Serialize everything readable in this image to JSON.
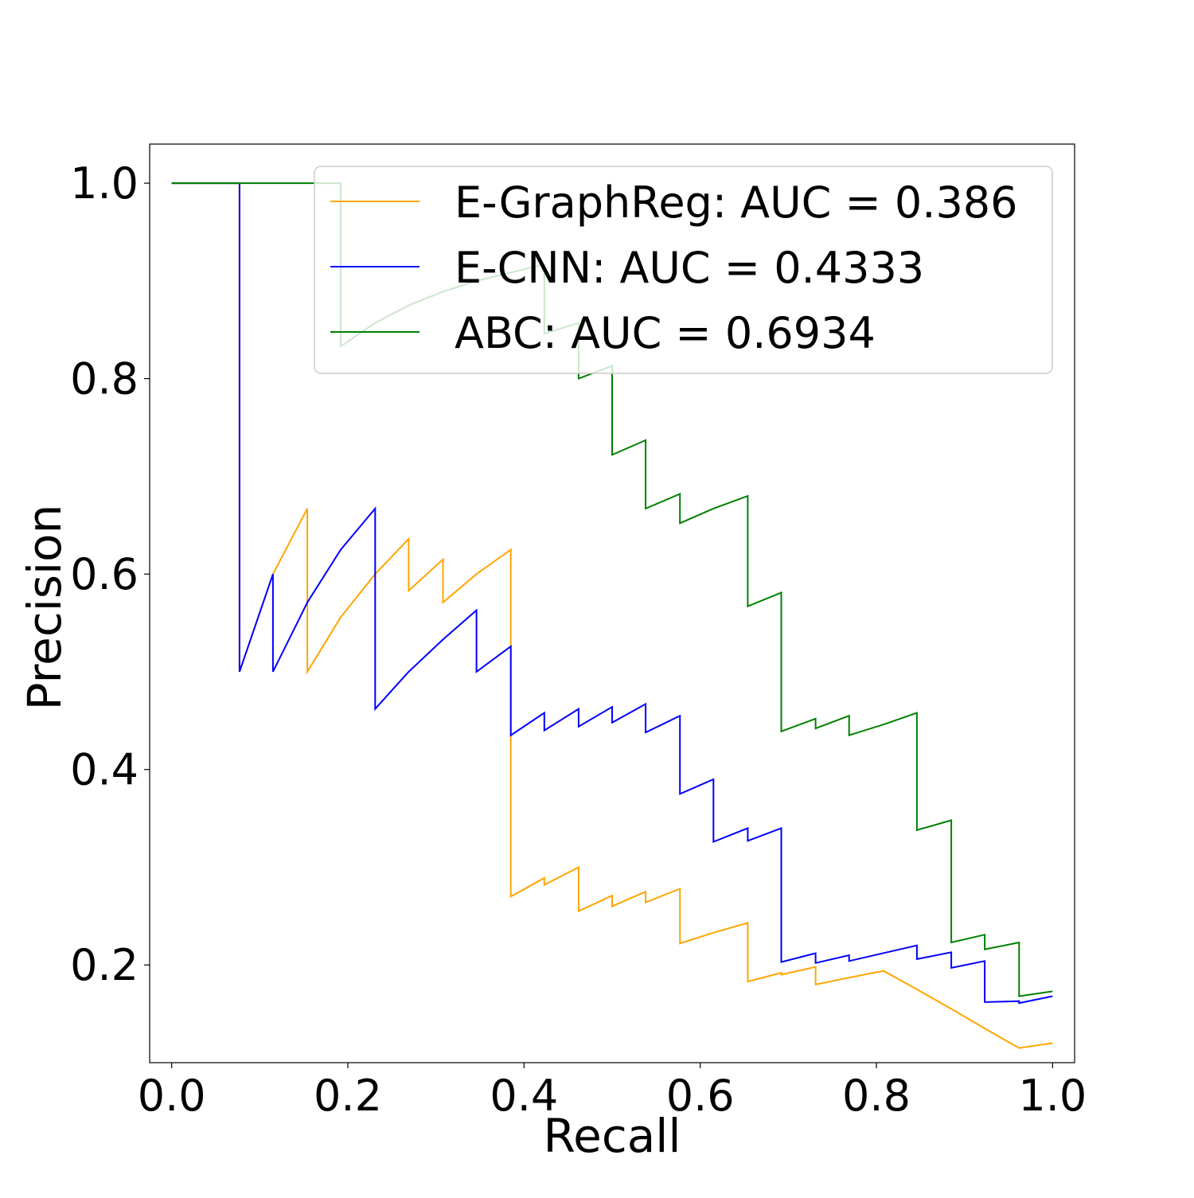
{
  "chart_data": {
    "type": "line",
    "title": "",
    "xlabel": "Recall",
    "ylabel": "Precision",
    "xlim": [
      -0.025,
      1.025
    ],
    "ylim": [
      0.1,
      1.04
    ],
    "x_ticks": [
      0.0,
      0.2,
      0.4,
      0.6,
      0.8,
      1.0
    ],
    "x_tick_labels": [
      "0.0",
      "0.2",
      "0.4",
      "0.6",
      "0.8",
      "1.0"
    ],
    "y_ticks": [
      0.2,
      0.4,
      0.6,
      0.8,
      1.0
    ],
    "y_tick_labels": [
      "0.2",
      "0.4",
      "0.6",
      "0.8",
      "1.0"
    ],
    "grid": false,
    "legend_position": "top-right",
    "series": [
      {
        "name": "E-GraphReg: AUC = 0.386",
        "color": "#ffa500",
        "x": [
          0.0,
          0.077,
          0.077,
          0.115,
          0.154,
          0.154,
          0.192,
          0.231,
          0.269,
          0.269,
          0.308,
          0.308,
          0.346,
          0.385,
          0.385,
          0.423,
          0.423,
          0.462,
          0.462,
          0.5,
          0.5,
          0.538,
          0.538,
          0.577,
          0.577,
          0.615,
          0.654,
          0.654,
          0.692,
          0.692,
          0.731,
          0.731,
          0.769,
          0.808,
          0.846,
          0.885,
          0.923,
          0.962,
          1.0
        ],
        "y": [
          1.0,
          1.0,
          0.5,
          0.6,
          0.667,
          0.5,
          0.556,
          0.6,
          0.636,
          0.583,
          0.615,
          0.571,
          0.6,
          0.625,
          0.27,
          0.289,
          0.282,
          0.3,
          0.255,
          0.271,
          0.26,
          0.275,
          0.264,
          0.278,
          0.222,
          0.233,
          0.243,
          0.183,
          0.192,
          0.19,
          0.198,
          0.18,
          0.187,
          0.194,
          0.175,
          0.155,
          0.135,
          0.115,
          0.12
        ]
      },
      {
        "name": "E-CNN: AUC = 0.4333",
        "color": "#0000ff",
        "x": [
          0.0,
          0.077,
          0.077,
          0.115,
          0.115,
          0.154,
          0.192,
          0.231,
          0.231,
          0.269,
          0.308,
          0.346,
          0.346,
          0.385,
          0.385,
          0.423,
          0.423,
          0.462,
          0.462,
          0.5,
          0.5,
          0.538,
          0.538,
          0.577,
          0.577,
          0.615,
          0.615,
          0.654,
          0.654,
          0.692,
          0.692,
          0.731,
          0.731,
          0.769,
          0.769,
          0.846,
          0.846,
          0.885,
          0.885,
          0.923,
          0.923,
          0.962,
          0.962,
          1.0
        ],
        "y": [
          1.0,
          1.0,
          0.5,
          0.6,
          0.5,
          0.571,
          0.625,
          0.667,
          0.462,
          0.5,
          0.533,
          0.563,
          0.5,
          0.526,
          0.435,
          0.458,
          0.44,
          0.462,
          0.444,
          0.464,
          0.448,
          0.467,
          0.438,
          0.455,
          0.375,
          0.39,
          0.326,
          0.34,
          0.327,
          0.34,
          0.203,
          0.212,
          0.202,
          0.21,
          0.204,
          0.22,
          0.206,
          0.213,
          0.197,
          0.204,
          0.162,
          0.163,
          0.161,
          0.168
        ]
      },
      {
        "name": "ABC: AUC = 0.6934",
        "color": "#008000",
        "x": [
          0.0,
          0.192,
          0.192,
          0.231,
          0.269,
          0.308,
          0.346,
          0.423,
          0.423,
          0.462,
          0.462,
          0.5,
          0.5,
          0.538,
          0.538,
          0.577,
          0.577,
          0.615,
          0.654,
          0.654,
          0.692,
          0.692,
          0.731,
          0.731,
          0.769,
          0.769,
          0.808,
          0.846,
          0.846,
          0.885,
          0.885,
          0.923,
          0.923,
          0.962,
          0.962,
          1.0
        ],
        "y": [
          1.0,
          1.0,
          0.833,
          0.857,
          0.875,
          0.889,
          0.9,
          0.917,
          0.846,
          0.857,
          0.8,
          0.813,
          0.722,
          0.737,
          0.667,
          0.682,
          0.652,
          0.667,
          0.68,
          0.567,
          0.581,
          0.439,
          0.452,
          0.442,
          0.455,
          0.435,
          0.446,
          0.458,
          0.338,
          0.348,
          0.223,
          0.231,
          0.216,
          0.223,
          0.168,
          0.173
        ]
      }
    ]
  }
}
